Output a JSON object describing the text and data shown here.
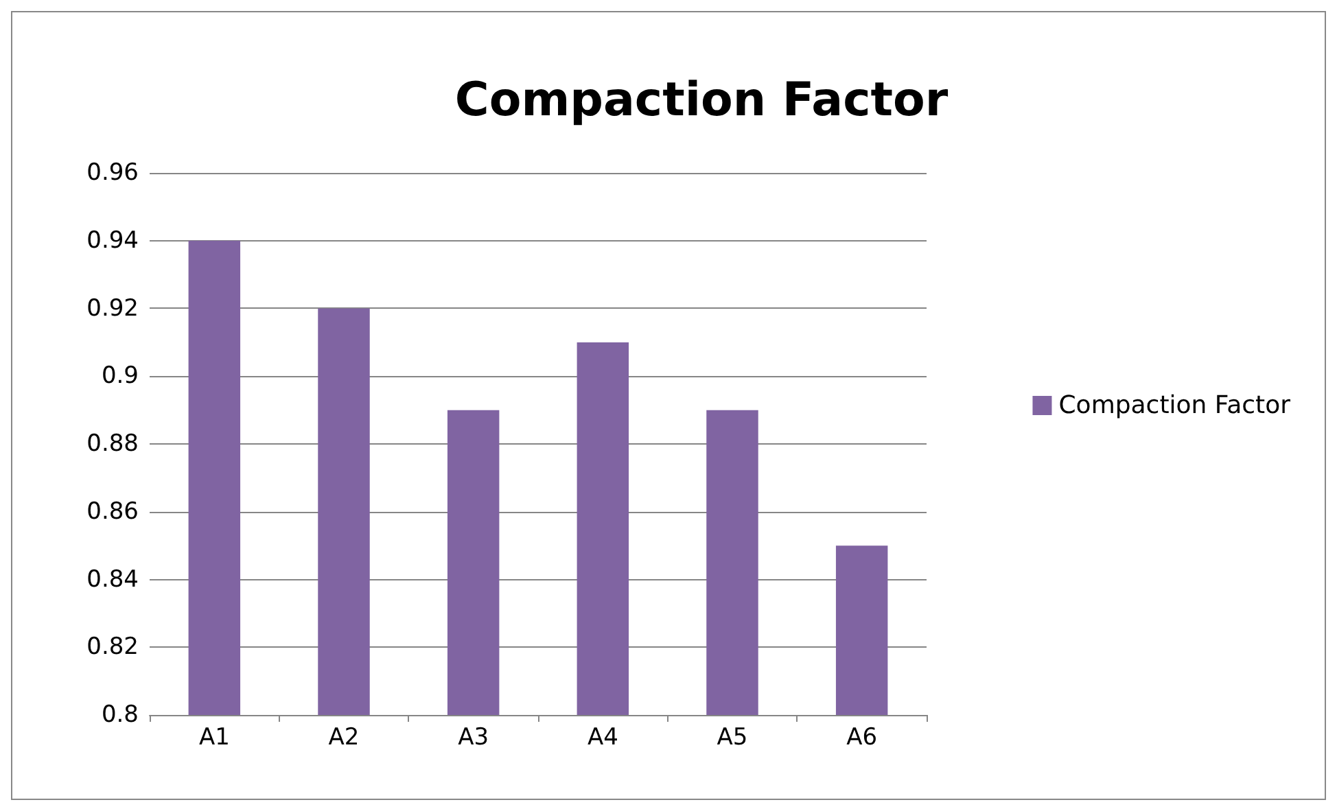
{
  "chart_data": {
    "type": "bar",
    "title": "Compaction Factor",
    "categories": [
      "A1",
      "A2",
      "A3",
      "A4",
      "A5",
      "A6"
    ],
    "series": [
      {
        "name": "Compaction Factor",
        "color": "#8064a2",
        "values": [
          0.94,
          0.92,
          0.89,
          0.91,
          0.89,
          0.85
        ]
      }
    ],
    "ylim": [
      0.8,
      0.96
    ],
    "yticks": [
      0.8,
      0.82,
      0.84,
      0.86,
      0.88,
      0.9,
      0.92,
      0.94,
      0.96
    ],
    "grid": "y",
    "legend": "right"
  }
}
